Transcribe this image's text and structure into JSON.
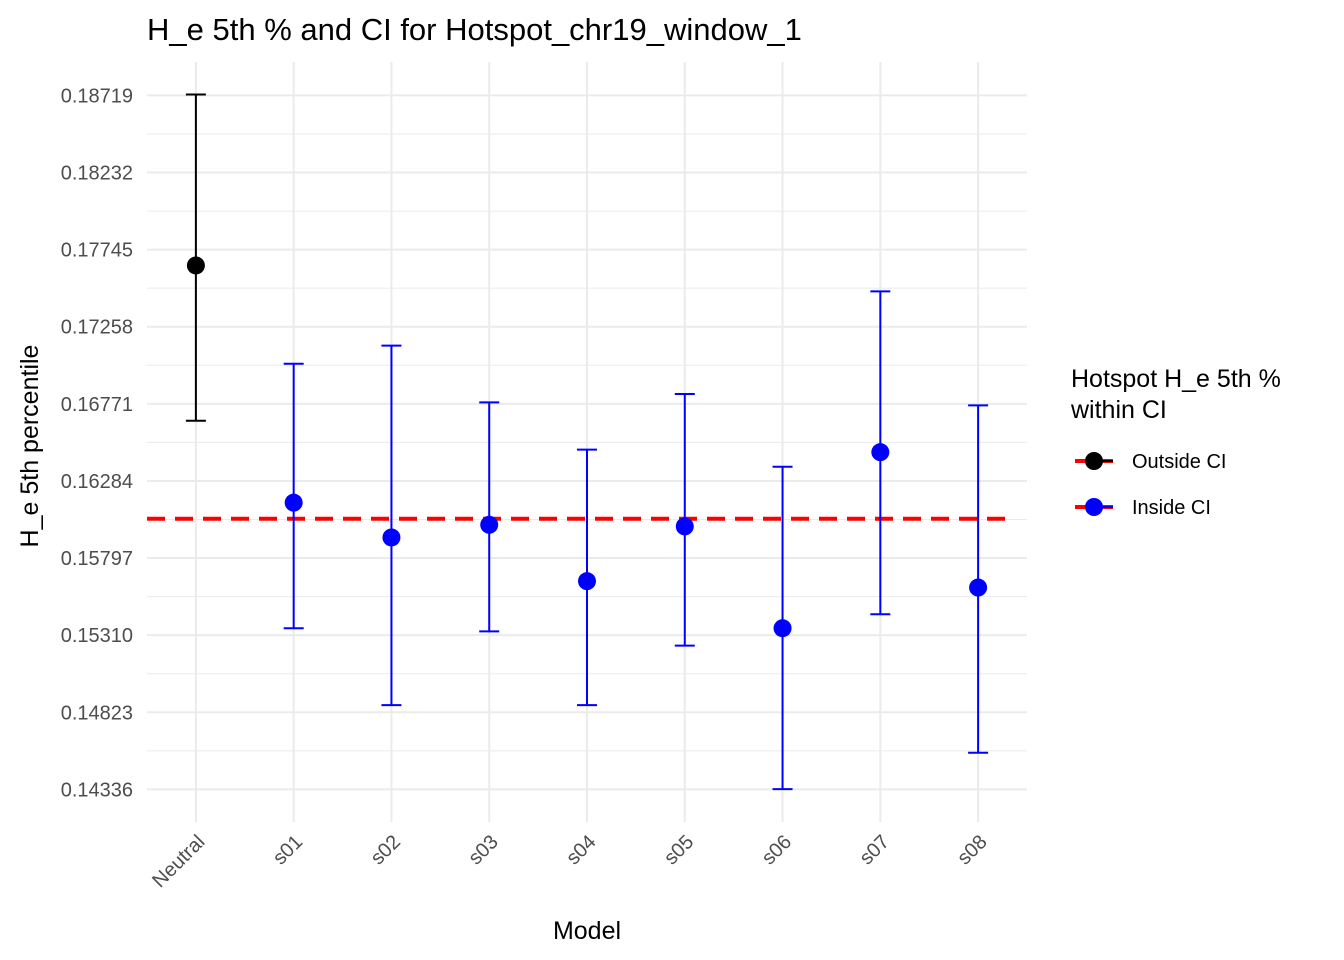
{
  "chart_data": {
    "type": "scatter",
    "title": "H_e 5th % and CI for Hotspot_chr19_window_1",
    "xlabel": "Model",
    "ylabel": "H_e 5th percentile",
    "categories": [
      "Neutral",
      "s01",
      "s02",
      "s03",
      "s04",
      "s05",
      "s06",
      "s07",
      "s08"
    ],
    "y_ticks": [
      "0.14336",
      "0.14823",
      "0.15310",
      "0.15797",
      "0.16284",
      "0.16771",
      "0.17258",
      "0.17745",
      "0.18232",
      "0.18719"
    ],
    "ylim": [
      0.1413,
      0.1893
    ],
    "grid": true,
    "reference_line": {
      "value": 0.16045,
      "color": "#ff0000",
      "style": "dashed"
    },
    "legend": {
      "title_lines": [
        "Hotspot H_e 5th %",
        "within CI"
      ],
      "placement": "right",
      "entries": [
        {
          "label": "Outside CI",
          "color": "#000000"
        },
        {
          "label": "Inside CI",
          "color": "#0000ff"
        }
      ]
    },
    "points": [
      {
        "category": "Neutral",
        "value": 0.17645,
        "ci_low": 0.16664,
        "ci_high": 0.18725,
        "group": "Outside CI"
      },
      {
        "category": "s01",
        "value": 0.16147,
        "ci_low": 0.15354,
        "ci_high": 0.17024,
        "group": "Inside CI"
      },
      {
        "category": "s02",
        "value": 0.15927,
        "ci_low": 0.14868,
        "ci_high": 0.17139,
        "group": "Inside CI"
      },
      {
        "category": "s03",
        "value": 0.16007,
        "ci_low": 0.15334,
        "ci_high": 0.1678,
        "group": "Inside CI"
      },
      {
        "category": "s04",
        "value": 0.15651,
        "ci_low": 0.14868,
        "ci_high": 0.16482,
        "group": "Inside CI"
      },
      {
        "category": "s05",
        "value": 0.15997,
        "ci_low": 0.15244,
        "ci_high": 0.16833,
        "group": "Inside CI"
      },
      {
        "category": "s06",
        "value": 0.15354,
        "ci_low": 0.14338,
        "ci_high": 0.16374,
        "group": "Inside CI"
      },
      {
        "category": "s07",
        "value": 0.16466,
        "ci_low": 0.15442,
        "ci_high": 0.17481,
        "group": "Inside CI"
      },
      {
        "category": "s08",
        "value": 0.15611,
        "ci_low": 0.14567,
        "ci_high": 0.16761,
        "group": "Inside CI"
      }
    ]
  }
}
